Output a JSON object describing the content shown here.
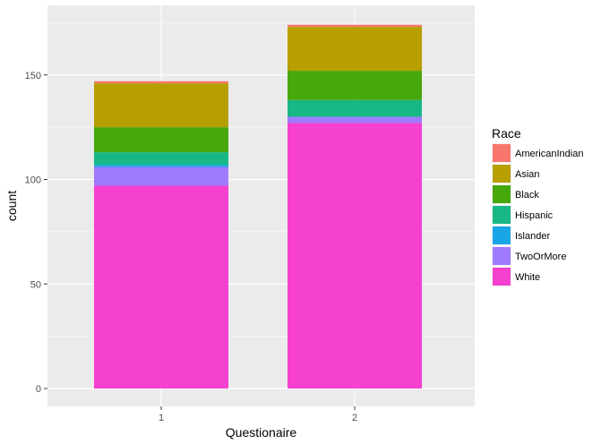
{
  "chart_data": {
    "type": "bar",
    "stacked": true,
    "title": "",
    "xlabel": "Questionaire",
    "ylabel": "count",
    "categories": [
      "1",
      "2"
    ],
    "ylim": [
      0,
      180
    ],
    "yticks": [
      0,
      50,
      100,
      150
    ],
    "grid": true,
    "legend_title": "Race",
    "legend_position": "right",
    "series": [
      {
        "name": "AmericanIndian",
        "color": "#F8766D",
        "values": [
          1,
          1
        ]
      },
      {
        "name": "Asian",
        "color": "#B79F00",
        "values": [
          21,
          21
        ]
      },
      {
        "name": "Black",
        "color": "#47A80B",
        "values": [
          12,
          14
        ]
      },
      {
        "name": "Hispanic",
        "color": "#17B886",
        "values": [
          6,
          8
        ]
      },
      {
        "name": "Islander",
        "color": "#18A6E7",
        "values": [
          1,
          0
        ]
      },
      {
        "name": "TwoOrMore",
        "color": "#A07BFF",
        "values": [
          9,
          3
        ]
      },
      {
        "name": "White",
        "color": "#F540D0",
        "values": [
          97,
          127
        ]
      }
    ]
  }
}
